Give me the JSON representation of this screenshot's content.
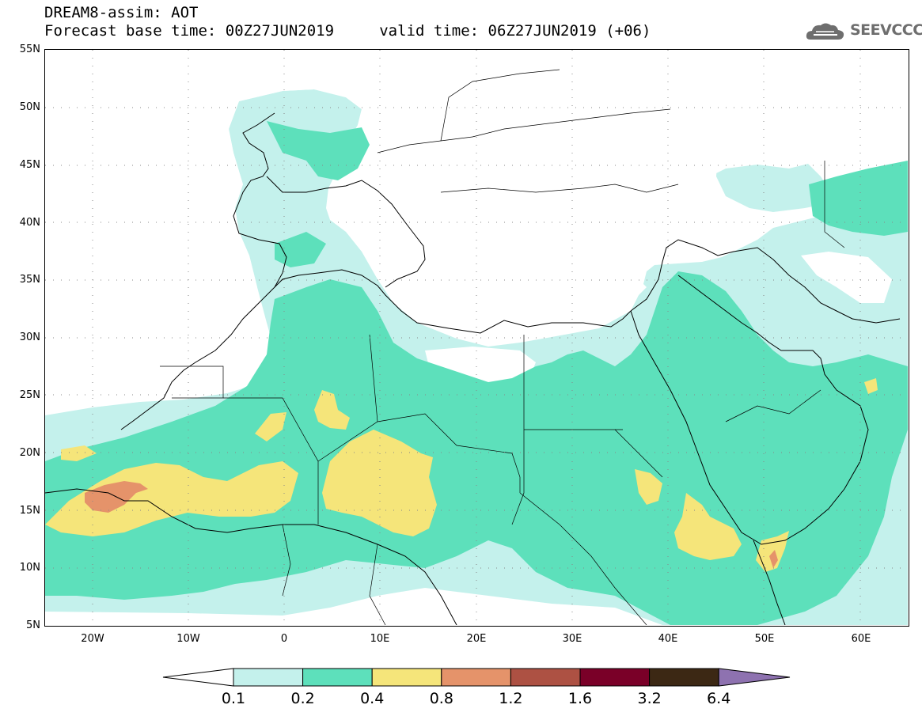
{
  "header": {
    "line1": "DREAM8-assim: AOT",
    "line2": "Forecast base time: 00Z27JUN2019     valid time: 06Z27JUN2019 (+06)"
  },
  "logo": {
    "text": "SEEVCCC",
    "icon": "cloud-icon"
  },
  "map": {
    "lat_labels": [
      "55N",
      "50N",
      "45N",
      "40N",
      "35N",
      "30N",
      "25N",
      "20N",
      "15N",
      "10N",
      "5N"
    ],
    "lon_labels": [
      "20W",
      "10W",
      "0",
      "10E",
      "20E",
      "30E",
      "40E",
      "50E",
      "60E"
    ],
    "lon_range": [
      -25,
      65
    ],
    "lat_range": [
      5,
      55
    ],
    "grid": "dotted"
  },
  "colorbar": {
    "labels": [
      "0.1",
      "0.2",
      "0.4",
      "0.8",
      "1.2",
      "1.6",
      "3.2",
      "6.4"
    ],
    "colors": [
      "#ffffff",
      "#c4f1ec",
      "#5de0bb",
      "#f5e57a",
      "#e5936a",
      "#ad5143",
      "#7a0028",
      "#3c2814",
      "#8e72b0"
    ]
  }
}
